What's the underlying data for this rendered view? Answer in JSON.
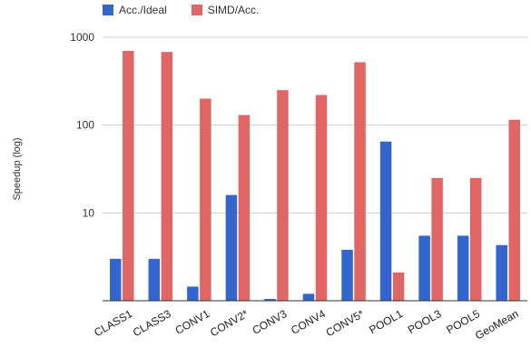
{
  "chart_data": {
    "type": "bar",
    "ylabel": "Speedup (log)",
    "xlabel": "",
    "yscale": "log",
    "ylim": [
      1,
      1000
    ],
    "yticks": [
      {
        "value": 1000,
        "label": "1000"
      },
      {
        "value": 100,
        "label": "100"
      },
      {
        "value": 10,
        "label": "10"
      }
    ],
    "grid": true,
    "legend_position": "top-left",
    "categories": [
      "CLASS1",
      "CLASS3",
      "CONV1",
      "CONV2*",
      "CONV3",
      "CONV4",
      "CONV5*",
      "POOL1",
      "POOL3",
      "POOL5",
      "GeoMean"
    ],
    "series": [
      {
        "name": "Acc./Ideal",
        "color": "#3366cc",
        "values": [
          3.0,
          3.0,
          1.45,
          16,
          1.05,
          1.2,
          3.8,
          65,
          5.5,
          5.5,
          4.3
        ]
      },
      {
        "name": "SIMD/Acc.",
        "color": "#e06666",
        "values": [
          700,
          680,
          200,
          130,
          250,
          220,
          520,
          2.1,
          25,
          25,
          115
        ]
      }
    ]
  }
}
